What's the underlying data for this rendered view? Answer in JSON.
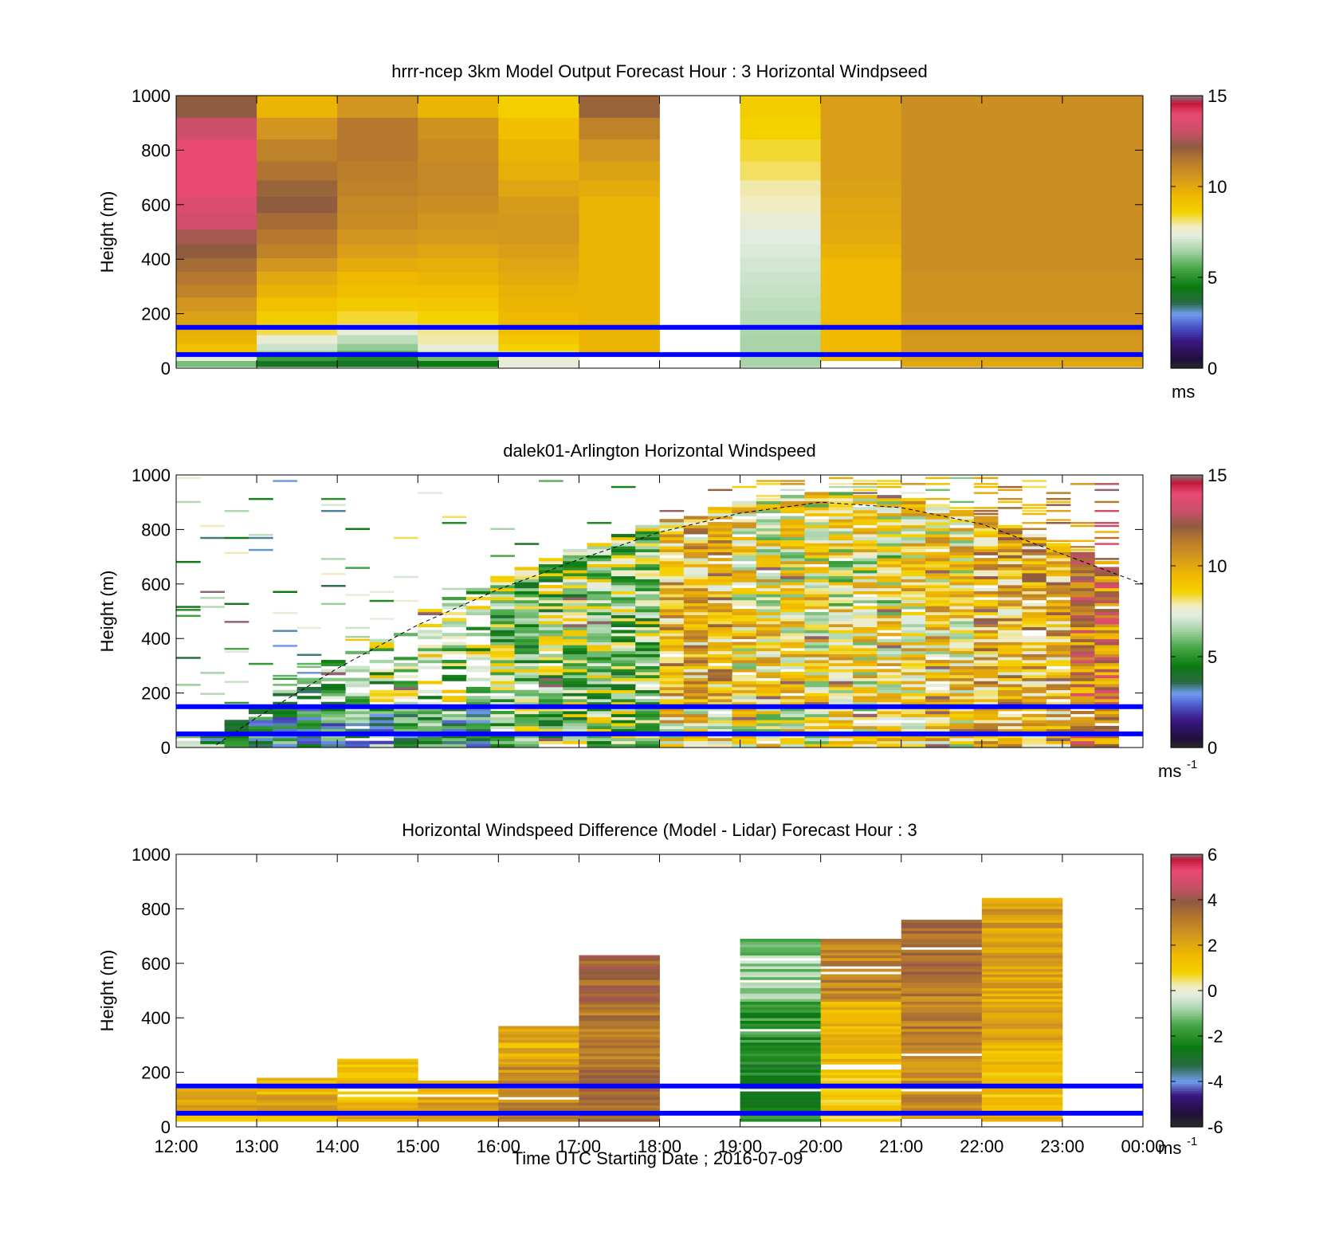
{
  "figure": {
    "xlabel": "Time UTC  Starting Date ; 2016-07-09",
    "x_tick_labels": [
      "12:00",
      "13:00",
      "14:00",
      "15:00",
      "16:00",
      "17:00",
      "18:00",
      "19:00",
      "20:00",
      "21:00",
      "22:00",
      "23:00",
      "00:00"
    ],
    "y_tick_labels": [
      "0",
      "200",
      "400",
      "600",
      "800",
      "1000"
    ],
    "ylabel": "Height (m)"
  },
  "colors": {
    "guide_lines": "#0000ff",
    "speed_scale": [
      [
        0,
        "#2b2b2b"
      ],
      [
        0.5,
        "#20103a"
      ],
      [
        1.5,
        "#3a1680"
      ],
      [
        2.3,
        "#4a55c8"
      ],
      [
        3,
        "#6f9df0"
      ],
      [
        3.6,
        "#2a6a45"
      ],
      [
        4.5,
        "#0c7a10"
      ],
      [
        5.5,
        "#46a646"
      ],
      [
        6.5,
        "#a8d4a8"
      ],
      [
        7.3,
        "#e2ece0"
      ],
      [
        7.8,
        "#f1ecc4"
      ],
      [
        8.6,
        "#f4d200"
      ],
      [
        9.5,
        "#f0b800"
      ],
      [
        10.5,
        "#d4981e"
      ],
      [
        11.5,
        "#b5782e"
      ],
      [
        12.2,
        "#8f5c40"
      ],
      [
        13,
        "#c85068"
      ],
      [
        14,
        "#e84a72"
      ],
      [
        14.6,
        "#c4163a"
      ],
      [
        15,
        "#7d7d7d"
      ]
    ],
    "diff_scale": [
      [
        -6,
        "#2b2b2b"
      ],
      [
        -5.4,
        "#20103a"
      ],
      [
        -4.6,
        "#3a1680"
      ],
      [
        -4,
        "#6f9df0"
      ],
      [
        -3.3,
        "#2a6a45"
      ],
      [
        -2.5,
        "#0c7a10"
      ],
      [
        -1.5,
        "#46a646"
      ],
      [
        -0.8,
        "#a8d4a8"
      ],
      [
        -0.2,
        "#e2ece0"
      ],
      [
        0.2,
        "#f1ecc4"
      ],
      [
        0.8,
        "#f4d200"
      ],
      [
        1.6,
        "#f0b800"
      ],
      [
        2.4,
        "#d4981e"
      ],
      [
        3.2,
        "#b5782e"
      ],
      [
        3.9,
        "#8f5c40"
      ],
      [
        4.6,
        "#c85068"
      ],
      [
        5.3,
        "#e84a72"
      ],
      [
        5.8,
        "#c4163a"
      ],
      [
        6,
        "#7d7d7d"
      ]
    ]
  },
  "chart_data": [
    {
      "type": "heatmap",
      "title": "hrrr-ncep 3km Model Output   Forecast Hour : 3 Horizontal Windpseed",
      "x_range": [
        "12:00",
        "00:00"
      ],
      "ylim": [
        0,
        1000
      ],
      "colorbar": {
        "range": [
          0,
          15
        ],
        "ticks": [
          "0",
          "5",
          "10",
          "15"
        ],
        "unit": "ms"
      },
      "guide_lines_m": [
        50,
        150
      ],
      "hourly_columns_start": [
        "12:00",
        "13:00",
        "14:00",
        "15:00",
        "16:00",
        "17:00",
        "18:00",
        "19:00",
        "20:00",
        "21:00",
        "22:00",
        "23:00"
      ],
      "profile_heights_m": [
        20,
        35,
        55,
        75,
        105,
        140,
        185,
        235,
        285,
        330,
        380,
        430,
        480,
        540,
        600,
        660,
        720,
        800,
        880,
        960
      ],
      "windspeed_ms": [
        [
          6.0,
          7.3,
          8.8,
          9.2,
          9.6,
          9.8,
          10.2,
          10.6,
          11.2,
          11.5,
          11.8,
          12.2,
          12.5,
          13.3,
          13.6,
          14.0,
          14.0,
          14.0,
          13.2,
          12.2
        ],
        [
          4.2,
          5.3,
          6.5,
          7.0,
          7.5,
          8.3,
          8.8,
          9.2,
          9.7,
          10.0,
          10.6,
          11.2,
          11.5,
          11.8,
          12.2,
          12.0,
          11.6,
          11.2,
          10.6,
          9.6
        ],
        [
          4.1,
          4.8,
          5.7,
          6.3,
          6.8,
          7.4,
          8.4,
          8.9,
          9.3,
          9.5,
          9.9,
          10.3,
          10.6,
          10.9,
          11.0,
          11.2,
          11.3,
          11.5,
          11.5,
          10.6
        ],
        [
          4.5,
          6.0,
          7.1,
          7.5,
          7.9,
          8.0,
          8.6,
          9.0,
          9.3,
          9.6,
          9.8,
          10.1,
          10.4,
          10.6,
          10.8,
          11.0,
          11.0,
          10.9,
          10.7,
          9.6
        ],
        [
          7.4,
          7.6,
          8.2,
          8.6,
          9.0,
          9.3,
          9.5,
          9.6,
          9.7,
          9.9,
          10.1,
          10.3,
          10.5,
          10.5,
          10.4,
          10.1,
          9.8,
          9.6,
          9.3,
          8.7
        ],
        [
          null,
          null,
          9.6,
          9.6,
          9.6,
          9.6,
          9.6,
          9.6,
          9.6,
          9.6,
          9.6,
          9.6,
          9.6,
          9.6,
          9.6,
          9.9,
          10.2,
          10.6,
          11.2,
          12.0
        ],
        [
          null,
          null,
          null,
          null,
          null,
          null,
          null,
          null,
          null,
          null,
          null,
          null,
          null,
          null,
          null,
          null,
          null,
          null,
          null,
          null
        ],
        [
          6.5,
          6.5,
          6.5,
          6.5,
          6.5,
          6.6,
          6.7,
          6.8,
          6.9,
          7.0,
          7.1,
          7.2,
          7.3,
          7.5,
          7.8,
          7.9,
          8.2,
          8.4,
          8.6,
          8.8
        ],
        [
          null,
          9.5,
          9.5,
          9.5,
          9.5,
          9.5,
          9.5,
          9.5,
          9.5,
          9.5,
          9.5,
          9.7,
          9.9,
          10.0,
          10.1,
          10.2,
          10.3,
          10.3,
          10.3,
          10.3
        ],
        [
          10.0,
          10.2,
          10.4,
          10.5,
          10.5,
          10.6,
          10.6,
          10.7,
          10.7,
          10.7,
          10.8,
          10.8,
          10.8,
          10.8,
          10.8,
          10.8,
          10.8,
          10.8,
          10.8,
          10.8
        ],
        [
          10.0,
          10.2,
          10.4,
          10.5,
          10.5,
          10.6,
          10.6,
          10.7,
          10.7,
          10.7,
          10.8,
          10.8,
          10.8,
          10.8,
          10.8,
          10.8,
          10.8,
          10.8,
          10.8,
          10.8
        ],
        [
          10.0,
          10.2,
          10.4,
          10.5,
          10.5,
          10.6,
          10.6,
          10.7,
          10.7,
          10.7,
          10.8,
          10.8,
          10.8,
          10.8,
          10.8,
          10.8,
          10.8,
          10.8,
          10.8,
          10.8
        ]
      ]
    },
    {
      "type": "heatmap",
      "title": "dalek01-Arlington  Horizontal Windspeed",
      "x_range": [
        "12:00",
        "00:00"
      ],
      "ylim": [
        0,
        1000
      ],
      "colorbar": {
        "range": [
          0,
          15
        ],
        "ticks": [
          "0",
          "5",
          "10",
          "15"
        ],
        "unit": "ms",
        "unit_exponent": "-1"
      },
      "guide_lines_m": [
        50,
        150
      ],
      "boundary_layer_top_dashed": {
        "time_h": [
          12.5,
          13.0,
          14.0,
          15.0,
          16.0,
          17.0,
          18.0,
          19.0,
          20.0,
          21.0,
          22.0,
          23.0,
          24.0
        ],
        "height_m": [
          10,
          110,
          290,
          450,
          580,
          690,
          790,
          860,
          900,
          880,
          820,
          710,
          600
        ]
      },
      "approximate_profile_speeds_ms": {
        "time_h": [
          12.5,
          13.5,
          14.5,
          15.5,
          16.5,
          17.5,
          18.5,
          19.5,
          20.5,
          21.5,
          22.5,
          23.5
        ],
        "below_150m": [
          4.5,
          4.5,
          4.5,
          4.8,
          6.5,
          6.8,
          8.5,
          8.0,
          8.0,
          8.5,
          9.6,
          11.0
        ],
        "150_to_450m": [
          6.0,
          5.5,
          6.5,
          6.8,
          6.5,
          6.5,
          9.5,
          8.5,
          8.4,
          8.8,
          9.6,
          11.2
        ],
        "above_450m": [
          null,
          null,
          null,
          null,
          6.5,
          6.5,
          9.5,
          8.2,
          7.8,
          8.5,
          9.8,
          11.5
        ]
      }
    },
    {
      "type": "heatmap",
      "title": "Horizontal Windspeed Difference (Model - Lidar) Forecast Hour : 3",
      "x_range": [
        "12:00",
        "00:00"
      ],
      "ylim": [
        0,
        1000
      ],
      "colorbar": {
        "range": [
          -6,
          6
        ],
        "ticks": [
          "-6",
          "-4",
          "-2",
          "0",
          "2",
          "4",
          "6"
        ],
        "unit": "ms",
        "unit_exponent": "-1"
      },
      "guide_lines_m": [
        50,
        150
      ],
      "hourly_columns": [
        {
          "start": "12:00",
          "top_m": 140,
          "difference_ms": [
            1.5,
            2.2,
            1.8
          ]
        },
        {
          "start": "13:00",
          "top_m": 180,
          "difference_ms": [
            1.5,
            2.0,
            1.2
          ]
        },
        {
          "start": "14:00",
          "top_m": 245,
          "difference_ms": [
            2.0,
            1.5,
            1.2
          ]
        },
        {
          "start": "15:00",
          "top_m": 170,
          "difference_ms": [
            2.3,
            2.2,
            2.0
          ]
        },
        {
          "start": "16:00",
          "top_m": 370,
          "difference_ms": [
            2.8,
            2.6,
            1.8
          ]
        },
        {
          "start": "17:00",
          "top_m": 630,
          "difference_ms": [
            3.4,
            3.2,
            3.6
          ]
        },
        {
          "start": "18:00",
          "top_m": null,
          "difference_ms": [
            null,
            null,
            null
          ]
        },
        {
          "start": "19:00",
          "top_m": 690,
          "difference_ms": [
            -2.3,
            -2.0,
            -1.0
          ]
        },
        {
          "start": "20:00",
          "top_m": 690,
          "difference_ms": [
            1.0,
            1.5,
            2.9
          ]
        },
        {
          "start": "21:00",
          "top_m": 760,
          "difference_ms": [
            2.6,
            3.0,
            3.5
          ]
        },
        {
          "start": "22:00",
          "top_m": 835,
          "difference_ms": [
            1.4,
            2.0,
            2.3
          ]
        },
        {
          "start": "23:00",
          "top_m": null,
          "difference_ms": [
            null,
            null,
            null
          ]
        }
      ]
    }
  ]
}
